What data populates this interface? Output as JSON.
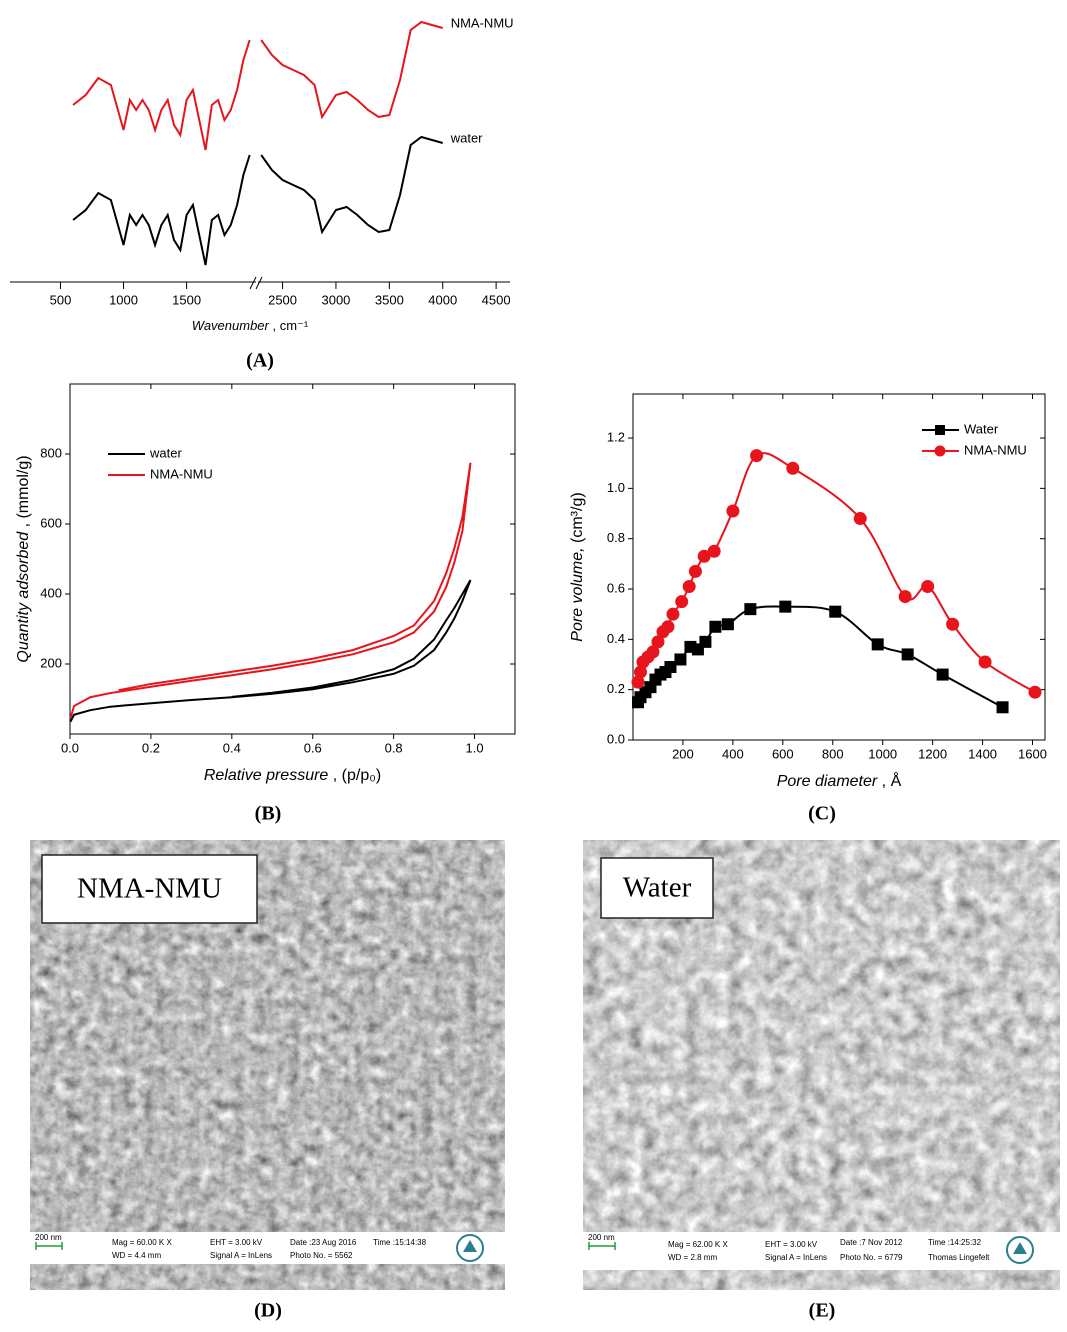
{
  "chart_data": [
    {
      "type": "line",
      "label": "(A)",
      "x_label": "Wavenumber",
      "x_unit": " ,  cm⁻¹",
      "xlim": [
        [
          100,
          2050
        ],
        [
          2270,
          4630
        ]
      ],
      "xticks": [
        500,
        1000,
        1500,
        2500,
        3000,
        3500,
        4000,
        4500
      ],
      "ylim": [
        0,
        260
      ],
      "x": [
        600,
        700,
        800,
        900,
        1000,
        1050,
        1100,
        1150,
        1200,
        1250,
        1300,
        1350,
        1400,
        1450,
        1500,
        1550,
        1600,
        1650,
        1700,
        1750,
        1800,
        1850,
        1900,
        1950,
        2000,
        2300,
        2400,
        2500,
        2600,
        2700,
        2800,
        2870,
        3000,
        3100,
        3200,
        3300,
        3400,
        3500,
        3600,
        3700,
        3800,
        3900,
        4000
      ],
      "series": [
        {
          "name": "NMA-NMU",
          "color": "#e8141b",
          "values": [
            170,
            180,
            197,
            190,
            145,
            175,
            165,
            175,
            165,
            145,
            165,
            175,
            150,
            140,
            175,
            185,
            155,
            125,
            170,
            175,
            155,
            165,
            185,
            215,
            235,
            235,
            220,
            210,
            205,
            200,
            190,
            158,
            180,
            183,
            175,
            165,
            158,
            160,
            195,
            245,
            253,
            250,
            247
          ]
        },
        {
          "name": "water",
          "color": "#000000",
          "values": [
            55,
            65,
            82,
            75,
            30,
            60,
            50,
            60,
            50,
            30,
            50,
            60,
            35,
            25,
            60,
            70,
            40,
            10,
            55,
            60,
            40,
            50,
            70,
            100,
            120,
            120,
            105,
            95,
            90,
            85,
            75,
            43,
            65,
            68,
            60,
            50,
            43,
            45,
            80,
            130,
            138,
            135,
            132
          ]
        }
      ]
    },
    {
      "type": "line",
      "label": "(B)",
      "x_label": "Relative pressure",
      "x_unit": " ,  (p/p₀)",
      "y_label": "Quantity adsorbed",
      "y_unit": " ,  (mmol/g)",
      "xlim": [
        0,
        1.1
      ],
      "xticks": [
        {
          "value": 0,
          "label": "0.0"
        },
        0.2,
        0.4,
        0.6,
        0.8,
        {
          "value": 1,
          "label": "1.0"
        }
      ],
      "ylim": [
        0,
        1000
      ],
      "yticks": [
        200,
        400,
        600,
        800
      ],
      "legend": "top-left",
      "series": [
        {
          "name": "water",
          "color": "#000000",
          "x": [
            0.001,
            0.01,
            0.05,
            0.1,
            0.2,
            0.3,
            0.4,
            0.5,
            0.6,
            0.7,
            0.8,
            0.85,
            0.9,
            0.93,
            0.95,
            0.97,
            0.99,
            0.97,
            0.95,
            0.93,
            0.9,
            0.85,
            0.8,
            0.7,
            0.6,
            0.5,
            0.4
          ],
          "values": [
            35,
            55,
            68,
            78,
            88,
            97,
            105,
            115,
            128,
            148,
            172,
            195,
            240,
            290,
            330,
            380,
            440,
            400,
            360,
            325,
            270,
            215,
            185,
            155,
            133,
            118,
            106
          ]
        },
        {
          "name": "NMA-NMU",
          "color": "#e8141b",
          "x": [
            0.001,
            0.01,
            0.05,
            0.1,
            0.2,
            0.3,
            0.4,
            0.5,
            0.6,
            0.7,
            0.8,
            0.85,
            0.9,
            0.93,
            0.95,
            0.97,
            0.99,
            0.97,
            0.95,
            0.93,
            0.9,
            0.85,
            0.8,
            0.7,
            0.6,
            0.5,
            0.4,
            0.3,
            0.2,
            0.12
          ],
          "values": [
            45,
            80,
            105,
            117,
            135,
            152,
            168,
            185,
            205,
            228,
            262,
            290,
            350,
            420,
            490,
            580,
            775,
            620,
            530,
            460,
            380,
            310,
            280,
            240,
            215,
            195,
            178,
            160,
            143,
            125
          ]
        }
      ]
    },
    {
      "type": "line",
      "label": "(C)",
      "x_label": "Pore diameter",
      "x_unit": " ,  Å",
      "y_label": "Pore volume,",
      "y_unit": "  (cm³/g)",
      "xlim": [
        0,
        1650
      ],
      "xticks": [
        200,
        400,
        600,
        800,
        1000,
        1200,
        1400,
        1600
      ],
      "ylim": [
        0,
        1.375
      ],
      "yticks": [
        {
          "value": 0,
          "label": "0.0"
        },
        0.2,
        0.4,
        0.6,
        0.8,
        {
          "value": 1,
          "label": "1.0"
        },
        1.2
      ],
      "legend": "top-right",
      "series": [
        {
          "name": "Water",
          "color": "#000000",
          "marker": "square",
          "x": [
            20,
            30,
            50,
            70,
            90,
            110,
            130,
            150,
            190,
            230,
            260,
            290,
            330,
            380,
            470,
            610,
            810,
            980,
            1100,
            1240,
            1480
          ],
          "values": [
            0.15,
            0.17,
            0.19,
            0.21,
            0.24,
            0.26,
            0.27,
            0.29,
            0.32,
            0.37,
            0.36,
            0.39,
            0.45,
            0.46,
            0.52,
            0.53,
            0.51,
            0.38,
            0.34,
            0.26,
            0.13
          ]
        },
        {
          "name": "NMA-NMU",
          "color": "#e8141b",
          "marker": "circle",
          "x": [
            20,
            30,
            40,
            60,
            80,
            100,
            120,
            140,
            160,
            195,
            225,
            250,
            285,
            325,
            400,
            495,
            640,
            910,
            1090,
            1180,
            1280,
            1410,
            1610
          ],
          "values": [
            0.23,
            0.27,
            0.31,
            0.33,
            0.35,
            0.39,
            0.43,
            0.45,
            0.5,
            0.55,
            0.61,
            0.67,
            0.73,
            0.75,
            0.91,
            1.13,
            1.08,
            0.88,
            0.57,
            0.61,
            0.46,
            0.31,
            0.19
          ]
        }
      ]
    }
  ],
  "images": [
    {
      "label": "(D)",
      "caption": "NMA-NMU",
      "scale": "200 nm",
      "info": [
        "Mag = 60.00 K X",
        "WD = 4.4 mm",
        "EHT = 3.00 kV",
        "Signal A = InLens",
        "Date :23 Aug 2016",
        "Photo No. = 5562",
        "Time :15:14:38"
      ]
    },
    {
      "label": "(E)",
      "caption": "Water",
      "scale": "200 nm",
      "info": [
        "Mag = 62.00 K X",
        "WD = 2.8 mm",
        "EHT = 3.00 kV",
        "Signal A = InLens",
        "Date :7 Nov 2012",
        "Photo No. = 6779",
        "Time :14:25:32",
        "Thomas Lingefelt"
      ]
    }
  ]
}
